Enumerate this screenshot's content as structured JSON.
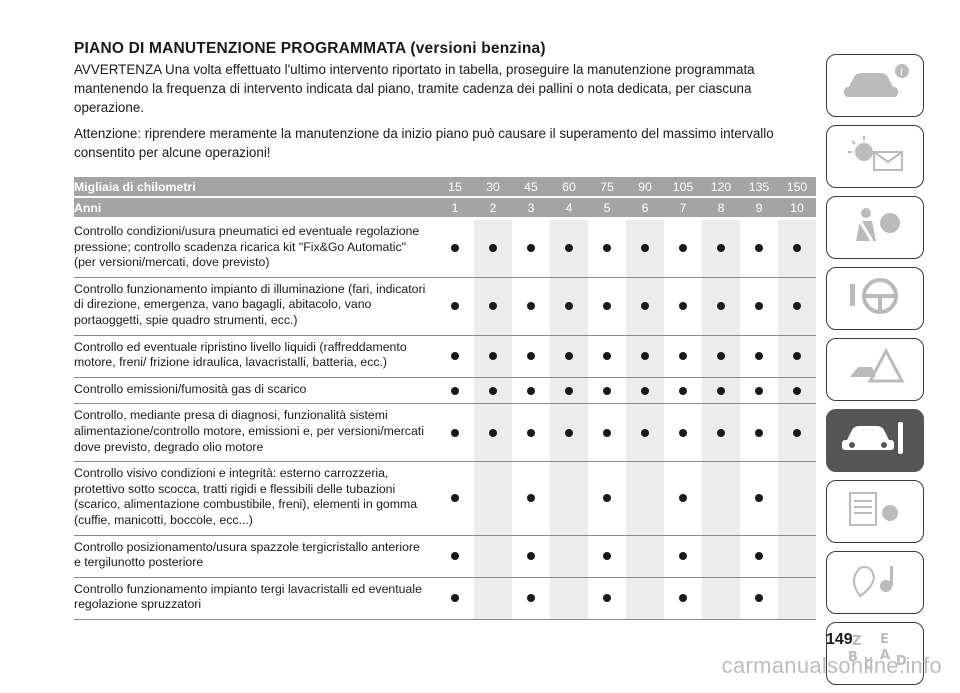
{
  "header": {
    "title": "PIANO DI MANUTENZIONE PROGRAMMATA",
    "subtitle": "(versioni benzina)"
  },
  "paragraphs": {
    "warning": "AVVERTENZA Una volta effettuato l'ultimo intervento riportato in tabella, proseguire la manutenzione programmata mantenendo la frequenza di intervento indicata dal piano, tramite cadenza dei pallini o nota dedicata, per ciascuna operazione.",
    "attention": "Attenzione: riprendere meramente la manutenzione da inizio piano può causare il superamento del massimo intervallo consentito per alcune operazioni!"
  },
  "table": {
    "km_label": "Migliaia di chilometri",
    "km_values": [
      "15",
      "30",
      "45",
      "60",
      "75",
      "90",
      "105",
      "120",
      "135",
      "150"
    ],
    "years_label": "Anni",
    "year_values": [
      "1",
      "2",
      "3",
      "4",
      "5",
      "6",
      "7",
      "8",
      "9",
      "10"
    ],
    "rows": [
      {
        "text": "Controllo condizioni/usura pneumatici ed eventuale regolazione pressione; controllo scadenza ricarica kit \"Fix&Go Automatic\" (per versioni/mercati, dove previsto)",
        "dots": [
          1,
          1,
          1,
          1,
          1,
          1,
          1,
          1,
          1,
          1
        ]
      },
      {
        "text": "Controllo funzionamento impianto di illuminazione (fari, indicatori di direzione, emergenza, vano bagagli, abitacolo, vano portaoggetti, spie quadro strumenti, ecc.)",
        "dots": [
          1,
          1,
          1,
          1,
          1,
          1,
          1,
          1,
          1,
          1
        ]
      },
      {
        "text": "Controllo ed eventuale ripristino livello liquidi (raffreddamento motore, freni/ frizione idraulica, lavacristalli, batteria, ecc.)",
        "dots": [
          1,
          1,
          1,
          1,
          1,
          1,
          1,
          1,
          1,
          1
        ]
      },
      {
        "text": "Controllo emissioni/fumosità gas di scarico",
        "dots": [
          1,
          1,
          1,
          1,
          1,
          1,
          1,
          1,
          1,
          1
        ]
      },
      {
        "text": "Controllo, mediante presa di diagnosi, funzionalità sistemi alimentazione/controllo motore, emissioni e, per versioni/mercati dove previsto, degrado olio motore",
        "dots": [
          1,
          1,
          1,
          1,
          1,
          1,
          1,
          1,
          1,
          1
        ]
      },
      {
        "text": "Controllo visivo condizioni e integrità: esterno carrozzeria, protettivo sotto scocca, tratti rigidi e flessibili delle tubazioni (scarico, alimentazione combustibile, freni), elementi in gomma (cuffie, manicotti, boccole, ecc...)",
        "dots": [
          1,
          0,
          1,
          0,
          1,
          0,
          1,
          0,
          1,
          0
        ]
      },
      {
        "text": "Controllo posizionamento/usura spazzole tergicristallo anteriore e tergilunotto posteriore",
        "dots": [
          1,
          0,
          1,
          0,
          1,
          0,
          1,
          0,
          1,
          0
        ]
      },
      {
        "text": "Controllo funzionamento impianto tergi lavacristalli ed eventuale regolazione spruzzatori",
        "dots": [
          1,
          0,
          1,
          0,
          1,
          0,
          1,
          0,
          1,
          0
        ]
      }
    ]
  },
  "side_tabs": [
    {
      "icon": "car-info-icon"
    },
    {
      "icon": "warning-lights-icon"
    },
    {
      "icon": "safety-airbag-icon"
    },
    {
      "icon": "steering-wheel-icon"
    },
    {
      "icon": "emergency-icon"
    },
    {
      "icon": "car-maintenance-icon",
      "active": true
    },
    {
      "icon": "technical-data-icon"
    },
    {
      "icon": "multimedia-icon"
    },
    {
      "icon": "index-icon"
    }
  ],
  "page_number": "149",
  "watermark": "carmanualsonline.info",
  "colors": {
    "header_bg": "#a4a4a4",
    "shade": "#ececec",
    "active_tab": "#555555"
  }
}
